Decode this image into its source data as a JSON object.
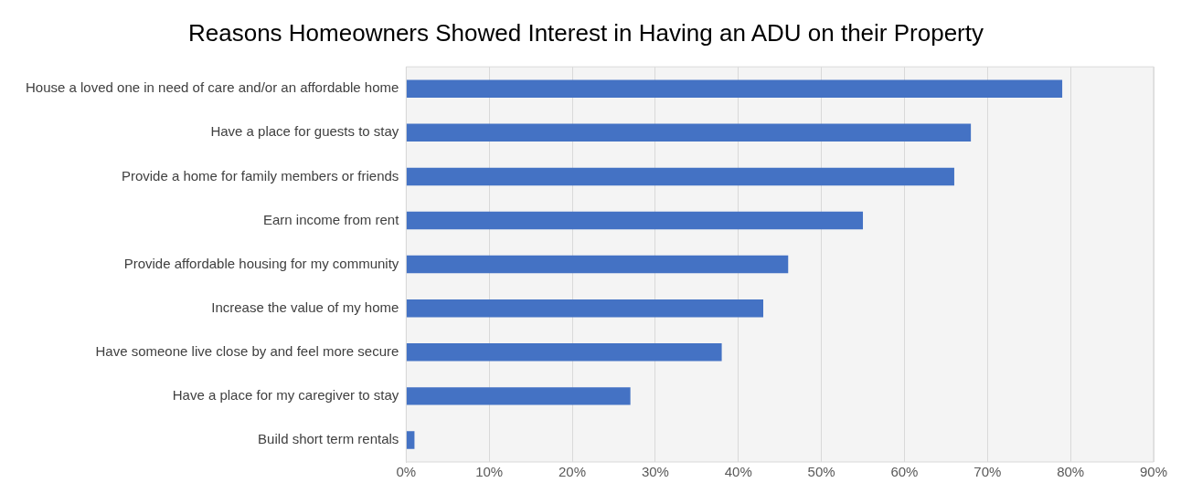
{
  "chart_data": {
    "type": "bar",
    "orientation": "horizontal",
    "title": "Reasons Homeowners Showed Interest in Having an ADU on their Property",
    "categories": [
      "House a loved one in need of care and/or an affordable home",
      "Have a place for guests to stay",
      "Provide a home for family members or friends",
      "Earn income from rent",
      "Provide affordable housing for my community",
      "Increase the value of my home",
      "Have someone live close by and feel more secure",
      "Have a place for my caregiver to stay",
      "Build short term rentals"
    ],
    "series": [
      {
        "color": "#4472c4",
        "values": [
          79,
          68,
          66,
          55,
          46,
          43,
          38,
          27,
          1
        ]
      }
    ],
    "xlim": [
      0,
      90
    ],
    "xticks": [
      {
        "value": 0,
        "label": "0%"
      },
      {
        "value": 10,
        "label": "10%"
      },
      {
        "value": 20,
        "label": "20%"
      },
      {
        "value": 30,
        "label": "30%"
      },
      {
        "value": 40,
        "label": "40%"
      },
      {
        "value": 50,
        "label": "50%"
      },
      {
        "value": 60,
        "label": "60%"
      },
      {
        "value": 70,
        "label": "70%"
      },
      {
        "value": 80,
        "label": "80%"
      },
      {
        "value": 90,
        "label": "90%"
      }
    ],
    "grid": "x",
    "legend": false
  }
}
